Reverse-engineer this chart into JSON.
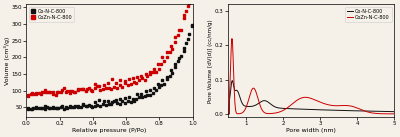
{
  "left_plot": {
    "xlabel": "Relative pressure (P/Po)",
    "ylabel": "Volume (cm³/g)",
    "ylim": [
      20,
      360
    ],
    "xlim": [
      0.0,
      1.0
    ],
    "yticks": [
      50,
      100,
      150,
      200,
      250,
      300,
      350
    ],
    "xticks": [
      0.0,
      0.2,
      0.4,
      0.6,
      0.8,
      1.0
    ],
    "legend": [
      "Co-N-C-800",
      "CoZn-N-C-800"
    ],
    "line_colors": [
      "#111111",
      "#cc0000"
    ]
  },
  "right_plot": {
    "xlabel": "Pore width (nm)",
    "ylabel": "Pore Volume [dV(d)] (cc/nm/g)",
    "ylim": [
      -0.01,
      0.32
    ],
    "xlim": [
      0.5,
      5.0
    ],
    "yticks": [
      0.0,
      0.1,
      0.2,
      0.3
    ],
    "xticks": [
      1,
      2,
      3,
      4,
      5
    ],
    "legend": [
      "Co-N-C-800",
      "CoZn-N-C-800"
    ],
    "line_colors": [
      "#111111",
      "#cc0000"
    ]
  },
  "bg_color": "#f5f0e8"
}
